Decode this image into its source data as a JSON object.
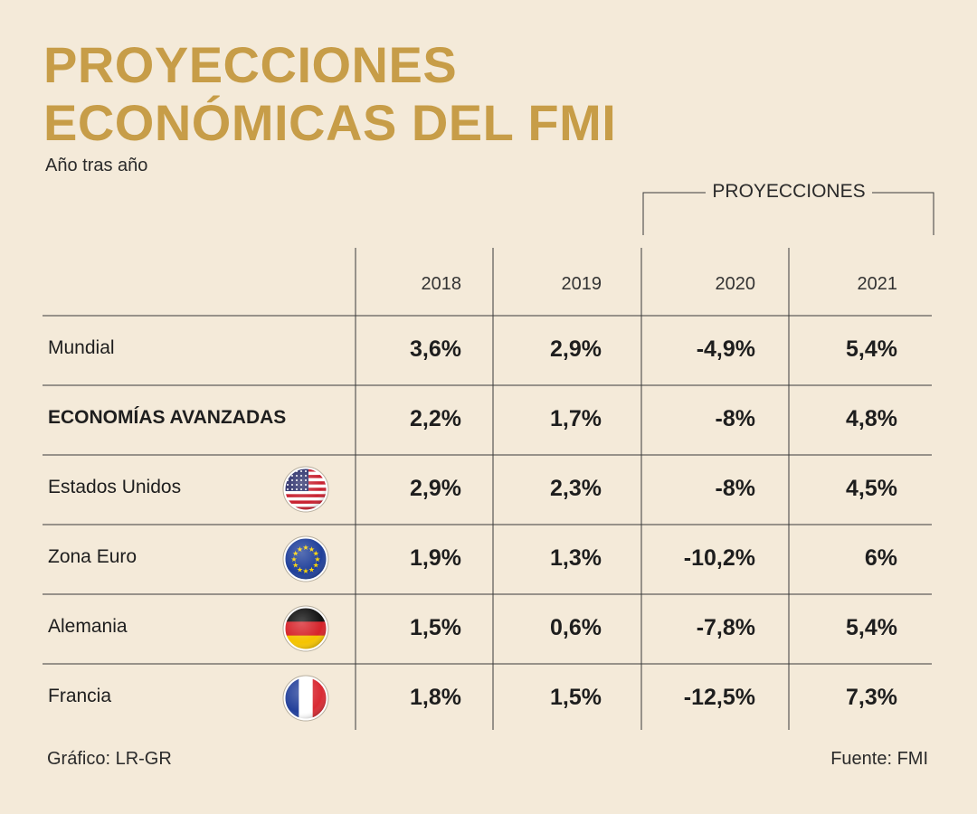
{
  "header": {
    "title_line1": "PROYECCIONES",
    "title_line2": "ECONÓMICAS DEL FMI",
    "subtitle": "Año tras año",
    "projection_label": "PROYECCIONES"
  },
  "footer": {
    "credit": "Gráfico: LR-GR",
    "source": "Fuente: FMI"
  },
  "colors": {
    "title": "#c79d48",
    "background": "#f4ead9",
    "lines": "#3a3a3a"
  },
  "chart_data": {
    "type": "table",
    "title": "PROYECCIONES ECONÓMICAS DEL FMI",
    "subtitle": "Año tras año",
    "columns": [
      "2018",
      "2019",
      "2020",
      "2021"
    ],
    "projected_columns": [
      "2020",
      "2021"
    ],
    "rows": [
      {
        "label": "Mundial",
        "bold": false,
        "flag": null,
        "values": [
          "3,6%",
          "2,9%",
          "-4,9%",
          "5,4%"
        ]
      },
      {
        "label": "ECONOMÍAS AVANZADAS",
        "bold": true,
        "flag": null,
        "values": [
          "2,2%",
          "1,7%",
          "-8%",
          "4,8%"
        ]
      },
      {
        "label": "Estados Unidos",
        "bold": false,
        "flag": "us-flag-icon",
        "values": [
          "2,9%",
          "2,3%",
          "-8%",
          "4,5%"
        ]
      },
      {
        "label": "Zona Euro",
        "bold": false,
        "flag": "eu-flag-icon",
        "values": [
          "1,9%",
          "1,3%",
          "-10,2%",
          "6%"
        ]
      },
      {
        "label": "Alemania",
        "bold": false,
        "flag": "germany-flag-icon",
        "values": [
          "1,5%",
          "0,6%",
          "-7,8%",
          "5,4%"
        ]
      },
      {
        "label": "Francia",
        "bold": false,
        "flag": "france-flag-icon",
        "values": [
          "1,8%",
          "1,5%",
          "-12,5%",
          "7,3%"
        ]
      }
    ]
  }
}
